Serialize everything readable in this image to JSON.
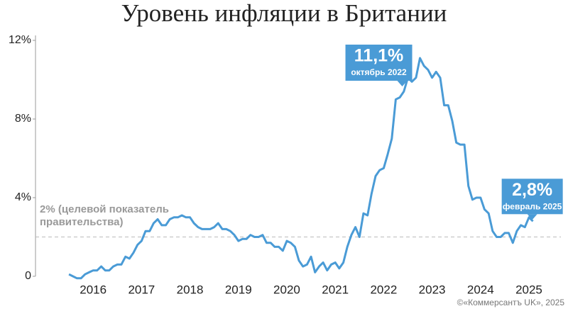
{
  "chart_data": {
    "type": "line",
    "title": "Уровень инфляции в Британии",
    "xlim": [
      2014.81,
      2025.66
    ],
    "xticks": [
      2016,
      2017,
      2018,
      2019,
      2020,
      2021,
      2022,
      2023,
      2024,
      2025
    ],
    "ylim": [
      0,
      12
    ],
    "yticks": [
      {
        "value": 0,
        "label": "0"
      },
      {
        "value": 4,
        "label": "4%"
      },
      {
        "value": 8,
        "label": "8%"
      },
      {
        "value": 12,
        "label": "12%"
      }
    ],
    "x": [
      2015.5,
      2015.583,
      2015.667,
      2015.75,
      2015.833,
      2015.917,
      2016,
      2016.083,
      2016.167,
      2016.25,
      2016.333,
      2016.417,
      2016.5,
      2016.583,
      2016.667,
      2016.75,
      2016.833,
      2016.917,
      2017,
      2017.083,
      2017.167,
      2017.25,
      2017.333,
      2017.417,
      2017.5,
      2017.583,
      2017.667,
      2017.75,
      2017.833,
      2017.917,
      2018,
      2018.083,
      2018.167,
      2018.25,
      2018.333,
      2018.417,
      2018.5,
      2018.583,
      2018.667,
      2018.75,
      2018.833,
      2018.917,
      2019,
      2019.083,
      2019.167,
      2019.25,
      2019.333,
      2019.417,
      2019.5,
      2019.583,
      2019.667,
      2019.75,
      2019.833,
      2019.917,
      2020,
      2020.083,
      2020.167,
      2020.25,
      2020.333,
      2020.417,
      2020.5,
      2020.583,
      2020.667,
      2020.75,
      2020.833,
      2020.917,
      2021,
      2021.083,
      2021.167,
      2021.25,
      2021.333,
      2021.417,
      2021.5,
      2021.583,
      2021.667,
      2021.75,
      2021.833,
      2021.917,
      2022,
      2022.083,
      2022.167,
      2022.25,
      2022.333,
      2022.417,
      2022.5,
      2022.583,
      2022.667,
      2022.75,
      2022.833,
      2022.917,
      2023,
      2023.083,
      2023.167,
      2023.25,
      2023.333,
      2023.417,
      2023.5,
      2023.583,
      2023.667,
      2023.75,
      2023.833,
      2023.917,
      2024,
      2024.083,
      2024.167,
      2024.25,
      2024.333,
      2024.417,
      2024.5,
      2024.583,
      2024.667,
      2024.75,
      2024.833,
      2024.917,
      2025,
      2025.083
    ],
    "series": [
      {
        "color": "#4a9bd6",
        "values": [
          0.1,
          0.0,
          -0.1,
          -0.1,
          0.1,
          0.2,
          0.3,
          0.3,
          0.5,
          0.3,
          0.3,
          0.5,
          0.6,
          0.6,
          1.0,
          0.9,
          1.2,
          1.6,
          1.8,
          2.3,
          2.3,
          2.7,
          2.9,
          2.6,
          2.6,
          2.9,
          3.0,
          3.0,
          3.1,
          3.0,
          3.0,
          2.7,
          2.5,
          2.4,
          2.4,
          2.4,
          2.5,
          2.7,
          2.4,
          2.4,
          2.3,
          2.1,
          1.8,
          1.9,
          1.9,
          2.1,
          2.0,
          2.0,
          2.1,
          1.7,
          1.7,
          1.5,
          1.5,
          1.3,
          1.8,
          1.7,
          1.5,
          0.8,
          0.5,
          0.6,
          1.0,
          0.2,
          0.5,
          0.7,
          0.3,
          0.6,
          0.7,
          0.4,
          0.7,
          1.5,
          2.1,
          2.5,
          2.0,
          3.2,
          3.1,
          4.2,
          5.1,
          5.4,
          5.5,
          6.2,
          7.0,
          9.0,
          9.1,
          9.4,
          10.1,
          9.9,
          10.1,
          11.1,
          10.7,
          10.5,
          10.1,
          10.4,
          10.1,
          8.7,
          8.7,
          7.9,
          6.8,
          6.7,
          6.7,
          4.6,
          3.9,
          4.0,
          4.0,
          3.4,
          3.2,
          2.3,
          2.0,
          2.0,
          2.2,
          2.2,
          1.7,
          2.3,
          2.6,
          2.5,
          3.0,
          2.8
        ]
      }
    ],
    "target_line": {
      "value": 2,
      "label": [
        "2% (целевой показатель",
        "правительства)"
      ]
    },
    "annotations": [
      {
        "x": 2022.75,
        "value": 11.1,
        "label": "11,1%",
        "date": "октябрь 2022"
      },
      {
        "x": 2025.083,
        "value": 2.8,
        "label": "2,8%",
        "date": "февраль 2025"
      }
    ],
    "source": "©«Коммерсантъ UK», 2025"
  }
}
